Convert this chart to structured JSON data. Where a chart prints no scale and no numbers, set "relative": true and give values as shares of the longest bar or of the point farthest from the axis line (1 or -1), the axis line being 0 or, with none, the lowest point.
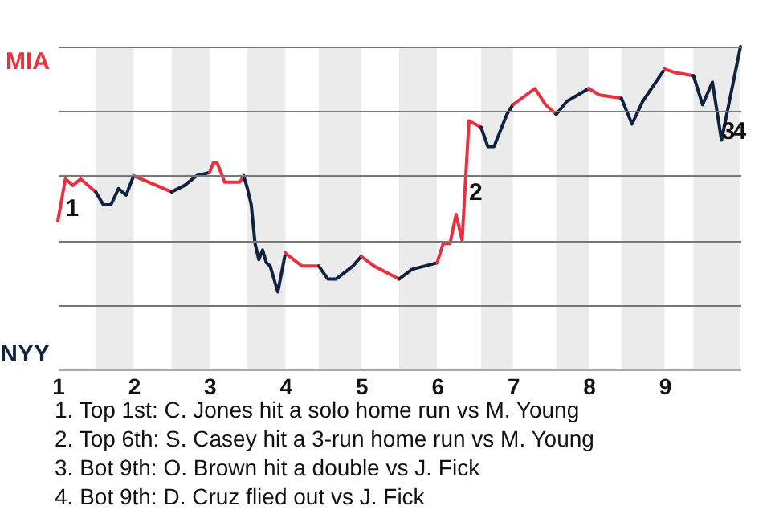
{
  "chart_data": {
    "type": "line",
    "relative": true,
    "xlim": [
      1,
      10
    ],
    "xticks": [
      1,
      2,
      3,
      4,
      5,
      6,
      7,
      8,
      9
    ],
    "grid": "y",
    "legend": "left",
    "series": [
      {
        "name": "MIA",
        "color": "#e8303f",
        "x": [
          1,
          1.1,
          1.2,
          1.3,
          1.5
        ],
        "values": [
          0.46,
          0.59,
          0.57,
          0.59,
          0.55
        ]
      },
      {
        "name": "NYY",
        "color": "#0f2340",
        "x": [
          1.5,
          1.6,
          1.7,
          1.8,
          1.9,
          2
        ],
        "values": [
          0.55,
          0.51,
          0.51,
          0.56,
          0.54,
          0.6
        ]
      },
      {
        "color": "#e8303f",
        "x": [
          2,
          2.5
        ],
        "values": [
          0.6,
          0.55
        ]
      },
      {
        "color": "#0f2340",
        "x": [
          2.5,
          2.67,
          2.83,
          3
        ],
        "values": [
          0.55,
          0.57,
          0.6,
          0.61
        ]
      },
      {
        "color": "#e8303f",
        "x": [
          3,
          3.05,
          3.1,
          3.2,
          3.4,
          3.45
        ],
        "values": [
          0.61,
          0.64,
          0.64,
          0.58,
          0.58,
          0.6
        ]
      },
      {
        "color": "#0f2340",
        "x": [
          3.45,
          3.5,
          3.55,
          3.6,
          3.65,
          3.7,
          3.75,
          3.8,
          3.85,
          3.9,
          4
        ],
        "values": [
          0.6,
          0.56,
          0.51,
          0.39,
          0.34,
          0.37,
          0.33,
          0.32,
          0.28,
          0.24,
          0.36
        ]
      },
      {
        "color": "#e8303f",
        "x": [
          4,
          4.11,
          4.22,
          4.44
        ],
        "values": [
          0.36,
          0.34,
          0.32,
          0.32
        ]
      },
      {
        "color": "#0f2340",
        "x": [
          4.44,
          4.56,
          4.67,
          4.78,
          4.89,
          5
        ],
        "values": [
          0.32,
          0.28,
          0.28,
          0.3,
          0.32,
          0.35
        ]
      },
      {
        "color": "#e8303f",
        "x": [
          5,
          5.17,
          5.5
        ],
        "values": [
          0.35,
          0.32,
          0.28
        ]
      },
      {
        "color": "#0f2340",
        "x": [
          5.5,
          5.67,
          6
        ],
        "values": [
          0.28,
          0.31,
          0.33
        ]
      },
      {
        "color": "#e8303f",
        "x": [
          6,
          6.08,
          6.17,
          6.25,
          6.33,
          6.42,
          6.5,
          6.58
        ],
        "values": [
          0.33,
          0.39,
          0.39,
          0.48,
          0.4,
          0.77,
          0.76,
          0.75
        ]
      },
      {
        "color": "#0f2340",
        "x": [
          6.58,
          6.67,
          6.75,
          6.92,
          7
        ],
        "values": [
          0.75,
          0.69,
          0.69,
          0.79,
          0.82
        ]
      },
      {
        "color": "#e8303f",
        "x": [
          7,
          7.29,
          7.43,
          7.57
        ],
        "values": [
          0.82,
          0.87,
          0.82,
          0.79
        ]
      },
      {
        "color": "#0f2340",
        "x": [
          7.57,
          7.71,
          8
        ],
        "values": [
          0.79,
          0.83,
          0.87
        ]
      },
      {
        "color": "#e8303f",
        "x": [
          8,
          8.14,
          8.43
        ],
        "values": [
          0.87,
          0.85,
          0.84
        ]
      },
      {
        "color": "#0f2340",
        "x": [
          8.43,
          8.57,
          8.71,
          9
        ],
        "values": [
          0.84,
          0.76,
          0.83,
          0.93
        ]
      },
      {
        "color": "#e8303f",
        "x": [
          9,
          9.13,
          9.38
        ],
        "values": [
          0.93,
          0.92,
          0.91
        ]
      },
      {
        "color": "#0f2340",
        "x": [
          9.38,
          9.5,
          9.63,
          9.75,
          10
        ],
        "values": [
          0.91,
          0.82,
          0.89,
          0.71,
          1
        ]
      }
    ],
    "bands": [
      {
        "axis": "x",
        "from": 1.5,
        "to": 2,
        "color": "#ebebeb"
      },
      {
        "axis": "x",
        "from": 2.5,
        "to": 3,
        "color": "#ebebeb"
      },
      {
        "axis": "x",
        "from": 3.5,
        "to": 4,
        "color": "#ebebeb"
      },
      {
        "axis": "x",
        "from": 4.44,
        "to": 5,
        "color": "#ebebeb"
      },
      {
        "axis": "x",
        "from": 5.5,
        "to": 6,
        "color": "#ebebeb"
      },
      {
        "axis": "x",
        "from": 6.58,
        "to": 7,
        "color": "#ebebeb"
      },
      {
        "axis": "x",
        "from": 7.57,
        "to": 8,
        "color": "#ebebeb"
      },
      {
        "axis": "x",
        "from": 8.43,
        "to": 9,
        "color": "#ebebeb"
      },
      {
        "axis": "x",
        "from": 9.38,
        "to": 10,
        "color": "#ebebeb"
      }
    ],
    "annotations": [
      {
        "text": "1",
        "x": 1.1,
        "y": 0.5
      },
      {
        "text": "2",
        "x": 6.42,
        "y": 0.55
      },
      {
        "text": "3",
        "x": 9.75,
        "y": 0.74
      },
      {
        "text": "4",
        "x": 9.9,
        "y": 0.74
      },
      "1. Top 1st: C. Jones hit a solo home run vs M. Young",
      "2. Top 6th: S. Casey hit a 3-run home run vs M. Young",
      "3. Bot 9th: O. Brown hit a double vs J. Fick",
      "4. Bot 9th: D. Cruz flied out vs J. Fick"
    ]
  }
}
